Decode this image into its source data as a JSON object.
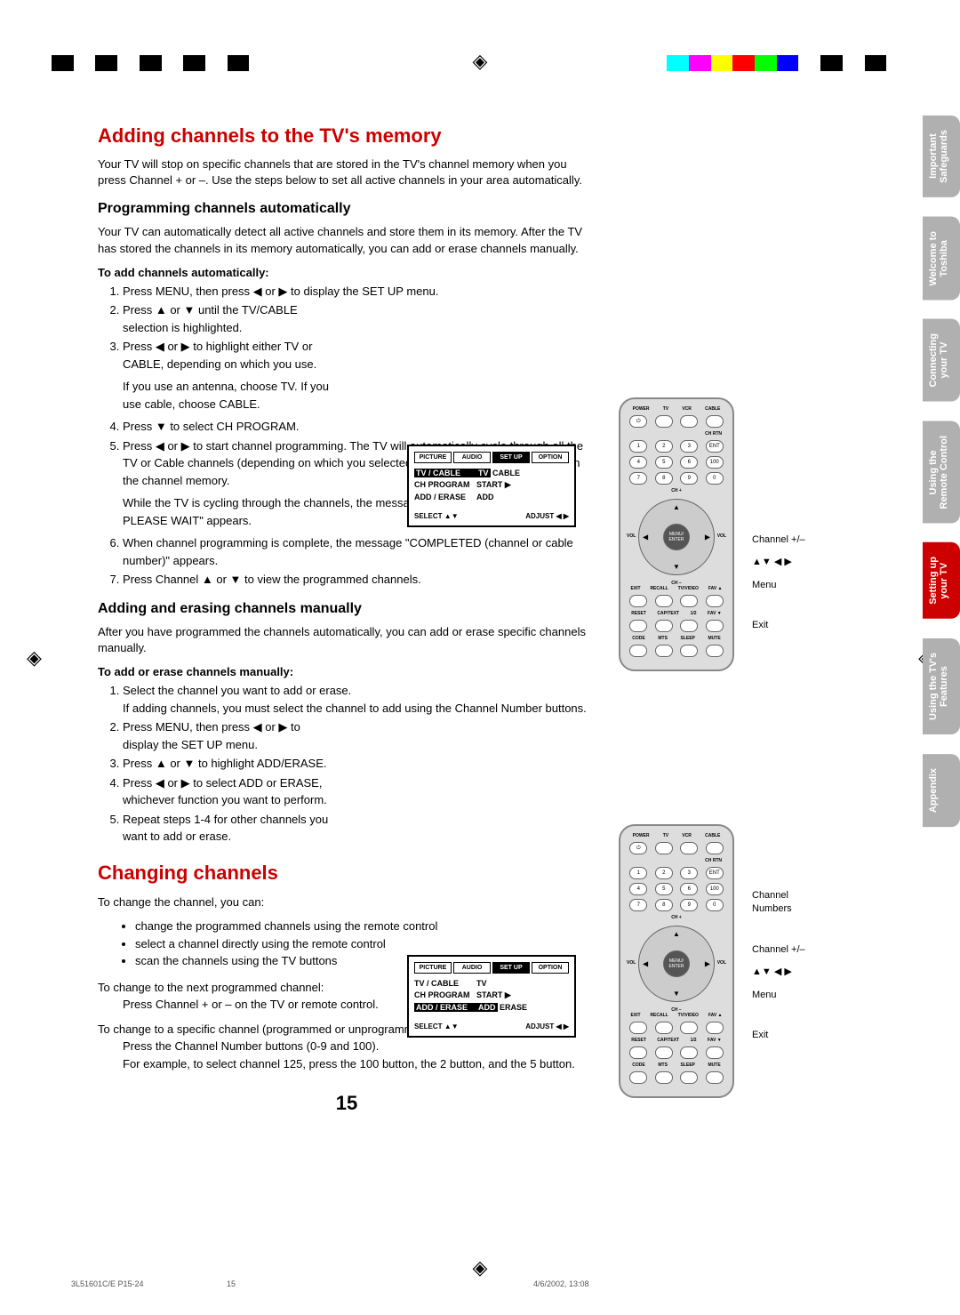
{
  "colorbar": [
    "#000",
    "#fff",
    "#000",
    "#fff",
    "#000",
    "#fff",
    "#000",
    "#fff",
    "#000",
    "#fff",
    "#fff",
    "#fff",
    "#fff",
    "#fff",
    "#fff",
    "#fff",
    "#fff",
    "#fff",
    "#fff",
    "#fff",
    "#fff",
    "#fff",
    "#fff",
    "#fff",
    "#fff",
    "#fff",
    "#fff",
    "#fff",
    "#0ff",
    "#f0f",
    "#ff0",
    "#f00",
    "#0f0",
    "#00f",
    "#fff",
    "#000",
    "#fff",
    "#000",
    "#fff"
  ],
  "h1a": "Adding channels to the TV's memory",
  "intro_a": "Your TV will stop on specific channels that are stored in the TV's channel memory when you press Channel + or –. Use the steps below to set all active channels in your area automatically.",
  "h2a": "Programming channels automatically",
  "intro_b": "Your TV can automatically detect all active channels and store them in its memory. After the TV has stored the channels in its memory automatically, you can add or erase channels manually.",
  "bold_a": "To add channels automatically:",
  "steps_a": {
    "1": "Press MENU, then press ◀ or ▶ to display the SET UP menu.",
    "2": "Press ▲ or ▼ until the TV/CABLE selection is highlighted.",
    "3": "Press ◀ or ▶ to highlight either TV or CABLE, depending on which you use.",
    "3b": "If you use an antenna, choose TV. If you use cable, choose CABLE.",
    "4": "Press ▼ to select CH PROGRAM.",
    "5": "Press ◀ or ▶ to start channel programming. The TV will automatically cycle through all the TV or Cable channels (depending on which you selected), and store all active channels in the channel memory.",
    "5b": "While the TV is cycling through the channels, the message \"PROGRAMMING NOW PLEASE WAIT\" appears.",
    "6": "When channel programming is complete, the message \"COMPLETED (channel or cable number)\" appears.",
    "7": "Press Channel ▲ or ▼ to view the programmed channels."
  },
  "h2b": "Adding and erasing channels manually",
  "intro_c": "After you have programmed the channels automatically, you can add or erase specific channels manually.",
  "bold_b": "To add or erase channels manually:",
  "steps_b": {
    "1": "Select the channel you want to add or erase.",
    "1b": "If adding channels, you must select the channel to add using the Channel Number buttons.",
    "2": "Press MENU, then press ◀ or ▶ to display the SET UP menu.",
    "3": "Press ▲ or ▼ to highlight ADD/ERASE.",
    "4": "Press ◀ or ▶ to select ADD or ERASE, whichever function you want to perform.",
    "5": "Repeat steps 1-4 for other channels you want to add or erase."
  },
  "h1b": "Changing channels",
  "para_c1": "To change the channel, you can:",
  "bul": {
    "1": "change the programmed channels using the remote control",
    "2": "select a channel directly using the remote control",
    "3": "scan the channels using the TV buttons"
  },
  "para_c2": "To change to the next programmed channel:",
  "para_c2s": "Press Channel + or – on the TV or remote control.",
  "para_c3": "To change to a specific channel (programmed or unprogrammed):",
  "para_c3s": "Press the Channel Number buttons (0-9 and 100).\nFor example, to select channel 125, press the 100 button, the 2 button, and the 5 button.",
  "pagenum": "15",
  "osd1": {
    "tabs": [
      "PICTURE",
      "AUDIO",
      "SET UP",
      "OPTION"
    ],
    "r1k": "TV / CABLE",
    "r1v": "TV  CABLE",
    "r2k": "CH PROGRAM",
    "r2v": "START  ▶",
    "r3k": "ADD / ERASE",
    "r3v": "ADD",
    "f1": "SELECT   ▲▼",
    "f2": "ADJUST   ◀ ▶"
  },
  "osd2": {
    "tabs": [
      "PICTURE",
      "AUDIO",
      "SET UP",
      "OPTION"
    ],
    "r1k": "TV / CABLE",
    "r1v": "TV",
    "r2k": "CH PROGRAM",
    "r2v": "START  ▶",
    "r3k": "ADD / ERASE",
    "r3v": "ADD  ERASE",
    "f1": "SELECT   ▲▼",
    "f2": "ADJUST   ◀ ▶"
  },
  "remote": {
    "toprow": [
      "POWER",
      "TV",
      "VCR",
      "CABLE"
    ],
    "chrtn": "CH RTN",
    "nums": [
      [
        "1",
        "2",
        "3",
        "ENT"
      ],
      [
        "4",
        "5",
        "6",
        "100"
      ],
      [
        "7",
        "8",
        "9",
        "0"
      ]
    ],
    "chp": "CH +",
    "chm": "CH –",
    "vol": "VOL",
    "menu": "MENU/\nENTER",
    "row4": [
      "EXIT",
      "RECALL",
      "TV/VIDEO",
      "FAV ▲"
    ],
    "row5": [
      "RESET",
      "CAP/TEXT",
      "1/2",
      "FAV ▼"
    ],
    "row6": [
      "CODE",
      "MTS",
      "SLEEP",
      "MUTE"
    ]
  },
  "call1": {
    "a": "Channel +/–",
    "b": "▲▼ ◀ ▶",
    "c": "Menu",
    "d": "Exit"
  },
  "call2": {
    "n": "Channel\nNumbers",
    "a": "Channel +/–",
    "b": "▲▼ ◀ ▶",
    "c": "Menu",
    "d": "Exit"
  },
  "tabs": {
    "1": "Important\nSafeguards",
    "2": "Welcome to\nToshiba",
    "3": "Connecting\nyour TV",
    "4": "Using the\nRemote Control",
    "5": "Setting up\nyour TV",
    "6": "Using the TV's\nFeatures",
    "7": "Appendix"
  },
  "foot": {
    "l": "3L51601C/E P15-24",
    "m": "15",
    "r": "4/6/2002, 13:08"
  }
}
